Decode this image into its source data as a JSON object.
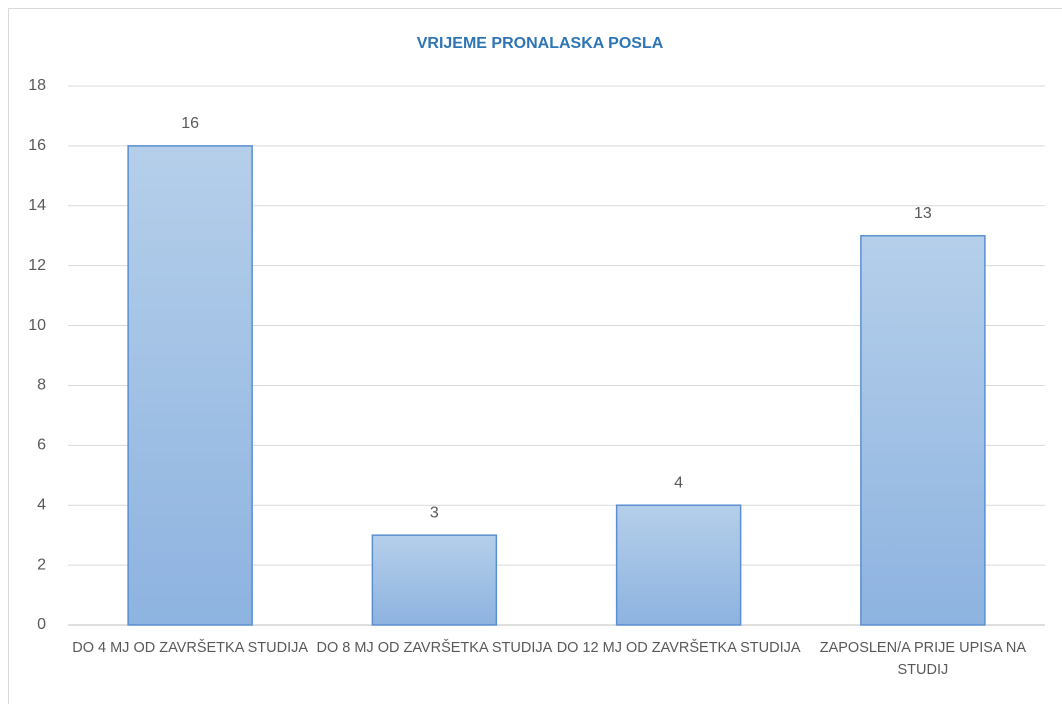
{
  "chart_data": {
    "type": "bar",
    "title": "VRIJEME PRONALASKA POSLA",
    "categories": [
      "DO 4 MJ OD ZAVRŠETKA STUDIJA",
      "DO 8 MJ OD ZAVRŠETKA STUDIJA",
      "DO 12 MJ OD ZAVRŠETKA STUDIJA",
      "ZAPOSLEN/A PRIJE UPISA NA STUDIJ"
    ],
    "values": [
      16,
      3,
      4,
      13
    ],
    "color": "#9dbde6",
    "ylim": [
      0,
      18
    ],
    "yticks": [
      0,
      2,
      4,
      6,
      8,
      10,
      12,
      14,
      16,
      18
    ],
    "grid": true
  }
}
